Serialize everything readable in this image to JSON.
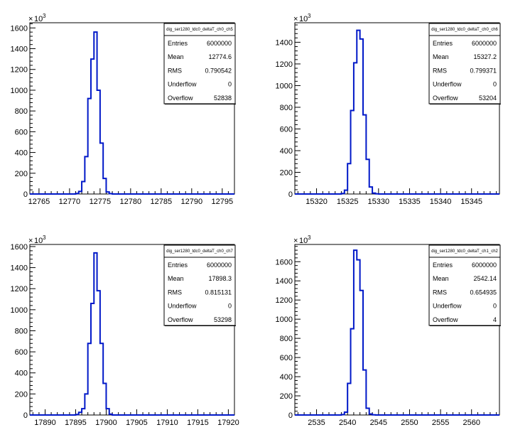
{
  "canvas": {
    "background": "#ffffff",
    "line_color": "#0018c8"
  },
  "chart_data": [
    {
      "type": "histogram",
      "title": "",
      "xlabel": "",
      "ylabel": "",
      "y_exponent": "10",
      "y_exponent_power": "3",
      "xlim": [
        12763.5,
        12797
      ],
      "ylim": [
        0,
        1650
      ],
      "x_ticks": [
        12765,
        12770,
        12775,
        12780,
        12785,
        12790,
        12795
      ],
      "y_ticks": [
        0,
        200,
        400,
        600,
        800,
        1000,
        1200,
        1400,
        1600
      ],
      "bin_edges": [
        12771,
        12771.5,
        12772,
        12772.5,
        12773,
        12773.5,
        12774,
        12774.5,
        12775,
        12775.5,
        12776,
        12776.5,
        12777
      ],
      "bin_values": [
        5,
        25,
        120,
        360,
        920,
        1300,
        1560,
        1000,
        490,
        150,
        20,
        3
      ],
      "stats": {
        "name": "dig_ser1280_tdc0_deltaT_ch0_ch5",
        "rows": [
          {
            "label": "Entries",
            "value": "6000000"
          },
          {
            "label": "Mean",
            "value": "12774.6"
          },
          {
            "label": "RMS",
            "value": "0.790542"
          },
          {
            "label": "Underflow",
            "value": "0"
          },
          {
            "label": "Overflow",
            "value": "52838"
          }
        ]
      }
    },
    {
      "type": "histogram",
      "title": "",
      "xlabel": "",
      "ylabel": "",
      "y_exponent": "10",
      "y_exponent_power": "3",
      "xlim": [
        15316.5,
        15349.5
      ],
      "ylim": [
        0,
        1580
      ],
      "x_ticks": [
        15320,
        15325,
        15330,
        15335,
        15340,
        15345
      ],
      "y_ticks": [
        0,
        200,
        400,
        600,
        800,
        1000,
        1200,
        1400
      ],
      "bin_edges": [
        15324,
        15324.5,
        15325,
        15325.5,
        15326,
        15326.5,
        15327,
        15327.5,
        15328,
        15328.5,
        15329,
        15329.5,
        15330
      ],
      "bin_values": [
        5,
        35,
        280,
        770,
        1210,
        1510,
        1430,
        730,
        320,
        65,
        8,
        2
      ],
      "stats": {
        "name": "dig_ser1280_tdc0_deltaT_ch0_ch6",
        "rows": [
          {
            "label": "Entries",
            "value": "6000000"
          },
          {
            "label": "Mean",
            "value": "15327.2"
          },
          {
            "label": "RMS",
            "value": "0.799371"
          },
          {
            "label": "Underflow",
            "value": "0"
          },
          {
            "label": "Overflow",
            "value": "53204"
          }
        ]
      }
    },
    {
      "type": "histogram",
      "title": "",
      "xlabel": "",
      "ylabel": "",
      "y_exponent": "10",
      "y_exponent_power": "3",
      "xlim": [
        17887.5,
        17921
      ],
      "ylim": [
        0,
        1620
      ],
      "x_ticks": [
        17890,
        17895,
        17900,
        17905,
        17910,
        17915,
        17920
      ],
      "y_ticks": [
        0,
        200,
        400,
        600,
        800,
        1000,
        1200,
        1400,
        1600
      ],
      "bin_edges": [
        17895,
        17895.5,
        17896,
        17896.5,
        17897,
        17897.5,
        17898,
        17898.5,
        17899,
        17899.5,
        17900,
        17900.5,
        17901
      ],
      "bin_values": [
        5,
        25,
        60,
        200,
        680,
        1060,
        1540,
        1180,
        680,
        300,
        60,
        8
      ],
      "stats": {
        "name": "dig_ser1280_tdc0_deltaT_ch0_ch7",
        "rows": [
          {
            "label": "Entries",
            "value": "6000000"
          },
          {
            "label": "Mean",
            "value": "17898.3"
          },
          {
            "label": "RMS",
            "value": "0.815131"
          },
          {
            "label": "Underflow",
            "value": "0"
          },
          {
            "label": "Overflow",
            "value": "53298"
          }
        ]
      }
    },
    {
      "type": "histogram",
      "title": "",
      "xlabel": "",
      "ylabel": "",
      "y_exponent": "10",
      "y_exponent_power": "3",
      "xlim": [
        2531.5,
        2564.5
      ],
      "ylim": [
        0,
        1780
      ],
      "x_ticks": [
        2535,
        2540,
        2545,
        2550,
        2555,
        2560
      ],
      "y_ticks": [
        0,
        200,
        400,
        600,
        800,
        1000,
        1200,
        1400,
        1600
      ],
      "bin_edges": [
        2539,
        2539.5,
        2540,
        2540.5,
        2541,
        2541.5,
        2542,
        2542.5,
        2543,
        2543.5,
        2544,
        2544.5
      ],
      "bin_values": [
        5,
        30,
        330,
        900,
        1720,
        1620,
        1300,
        470,
        70,
        10,
        2
      ],
      "stats": {
        "name": "dig_ser1280_tdc0_deltaT_ch1_ch2",
        "rows": [
          {
            "label": "Entries",
            "value": "6000000"
          },
          {
            "label": "Mean",
            "value": "2542.14"
          },
          {
            "label": "RMS",
            "value": "0.654935"
          },
          {
            "label": "Underflow",
            "value": "0"
          },
          {
            "label": "Overflow",
            "value": "4"
          }
        ]
      }
    }
  ]
}
